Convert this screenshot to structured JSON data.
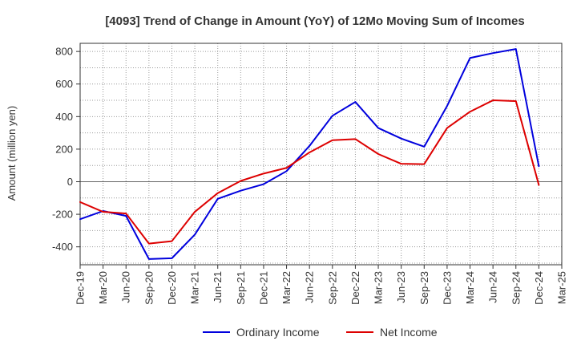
{
  "chart_data": {
    "type": "line",
    "title": "[4093]  Trend of Change in Amount (YoY) of 12Mo Moving Sum of Incomes",
    "xlabel": "",
    "ylabel": "Amount (million yen)",
    "ylim": [
      -510,
      850
    ],
    "yticks": [
      -400,
      -200,
      0,
      200,
      400,
      600,
      800
    ],
    "grid": true,
    "legend_position": "bottom",
    "categories": [
      "Dec-19",
      "Mar-20",
      "Jun-20",
      "Sep-20",
      "Dec-20",
      "Mar-21",
      "Jun-21",
      "Sep-21",
      "Dec-21",
      "Mar-22",
      "Jun-22",
      "Sep-22",
      "Dec-22",
      "Mar-23",
      "Jun-23",
      "Sep-23",
      "Dec-23",
      "Mar-24",
      "Jun-24",
      "Sep-24",
      "Dec-24",
      "Mar-25"
    ],
    "series": [
      {
        "name": "Ordinary Income",
        "color": "#0000dd",
        "values": [
          -230,
          -180,
          -210,
          -475,
          -470,
          -325,
          -105,
          -55,
          -15,
          65,
          220,
          405,
          490,
          330,
          265,
          215,
          465,
          760,
          790,
          815,
          95,
          null
        ]
      },
      {
        "name": "Net Income",
        "color": "#dd0000",
        "values": [
          -125,
          -185,
          -195,
          -380,
          -365,
          -185,
          -70,
          5,
          50,
          85,
          180,
          255,
          262,
          170,
          110,
          108,
          330,
          430,
          500,
          495,
          -20,
          null
        ]
      }
    ]
  }
}
